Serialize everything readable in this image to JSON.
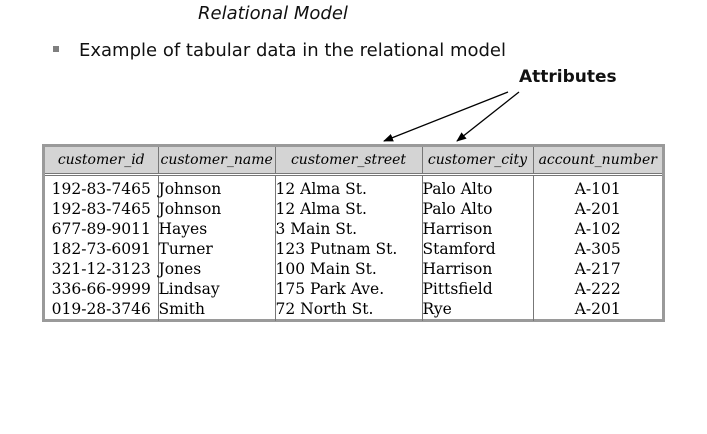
{
  "slide": {
    "title": "Relational Model",
    "bullet_text": "Example of tabular data in the relational model",
    "annotation": "Attributes"
  },
  "table": {
    "columns": [
      "customer_id",
      "customer_name",
      "customer_street",
      "customer_city",
      "account_number"
    ],
    "rows": [
      [
        "192-83-7465",
        "Johnson",
        "12 Alma St.",
        "Palo Alto",
        "A-101"
      ],
      [
        "192-83-7465",
        "Johnson",
        "12 Alma St.",
        "Palo Alto",
        "A-201"
      ],
      [
        "677-89-9011",
        "Hayes",
        "3 Main St.",
        "Harrison",
        "A-102"
      ],
      [
        "182-73-6091",
        "Turner",
        "123 Putnam St.",
        "Stamford",
        "A-305"
      ],
      [
        "321-12-3123",
        "Jones",
        "100 Main St.",
        "Harrison",
        "A-217"
      ],
      [
        "336-66-9999",
        "Lindsay",
        "175 Park Ave.",
        "Pittsfield",
        "A-222"
      ],
      [
        "019-28-3746",
        "Smith",
        "72 North St.",
        "Rye",
        "A-201"
      ]
    ]
  }
}
